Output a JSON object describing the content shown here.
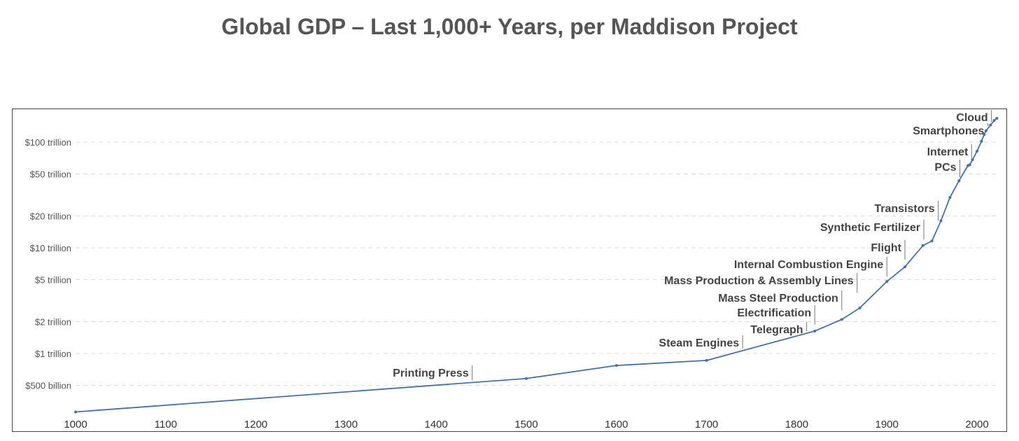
{
  "chart_data": {
    "type": "line",
    "title": "Global GDP – Last 1,000+ Years, per Maddison Project",
    "xlabel": "",
    "ylabel": "",
    "x_scale": "linear",
    "y_scale": "log",
    "xlim": [
      1000,
      2022
    ],
    "ylim": [
      280000000000,
      190000000000000
    ],
    "grid": "horizontal dashed",
    "line_color": "#4a6fa0",
    "x_ticks": [
      "1000",
      "1100",
      "1200",
      "1300",
      "1400",
      "1500",
      "1600",
      "1700",
      "1800",
      "1900",
      "2000"
    ],
    "y_ticks": [
      {
        "value": 500000000000,
        "label": "$500 billion"
      },
      {
        "value": 1000000000000,
        "label": "$1 trillion"
      },
      {
        "value": 2000000000000,
        "label": "$2 trillion"
      },
      {
        "value": 5000000000000,
        "label": "$5 trillion"
      },
      {
        "value": 10000000000000,
        "label": "$10 trillion"
      },
      {
        "value": 20000000000000,
        "label": "$20 trillion"
      },
      {
        "value": 50000000000000,
        "label": "$50 trillion"
      },
      {
        "value": 100000000000000,
        "label": "$100 trillion"
      }
    ],
    "points": [
      [
        1000,
        0.28
      ],
      [
        1500,
        0.58
      ],
      [
        1600,
        0.77
      ],
      [
        1700,
        0.86
      ],
      [
        1820,
        1.63
      ],
      [
        1850,
        2.1
      ],
      [
        1870,
        2.7
      ],
      [
        1900,
        4.8
      ],
      [
        1920,
        6.6
      ],
      [
        1940,
        10.5
      ],
      [
        1950,
        11.6
      ],
      [
        1960,
        18
      ],
      [
        1970,
        30
      ],
      [
        1980,
        43
      ],
      [
        1990,
        60
      ],
      [
        1992,
        61
      ],
      [
        1995,
        68
      ],
      [
        2000,
        82
      ],
      [
        2005,
        102
      ],
      [
        2008,
        118
      ],
      [
        2010,
        128
      ],
      [
        2015,
        145
      ],
      [
        2019,
        160
      ],
      [
        2022,
        168
      ]
    ],
    "points_unit": "trillion USD",
    "annotations": [
      {
        "label": "Printing Press",
        "year": 1440
      },
      {
        "label": "Steam Engines",
        "year": 1740
      },
      {
        "label": "Telegraph",
        "year": 1811
      },
      {
        "label": "Electrification",
        "year": 1820
      },
      {
        "label": "Mass Steel Production",
        "year": 1850
      },
      {
        "label": "Mass Production & Assembly Lines",
        "year": 1867
      },
      {
        "label": "Internal Combustion Engine",
        "year": 1900
      },
      {
        "label": "Flight",
        "year": 1920
      },
      {
        "label": "Synthetic Fertilizer",
        "year": 1941
      },
      {
        "label": "Transistors",
        "year": 1957
      },
      {
        "label": "PCs",
        "year": 1981
      },
      {
        "label": "Internet",
        "year": 1994
      },
      {
        "label": "Smartphones",
        "year": 2012
      },
      {
        "label": "Cloud",
        "year": 2016
      }
    ]
  }
}
